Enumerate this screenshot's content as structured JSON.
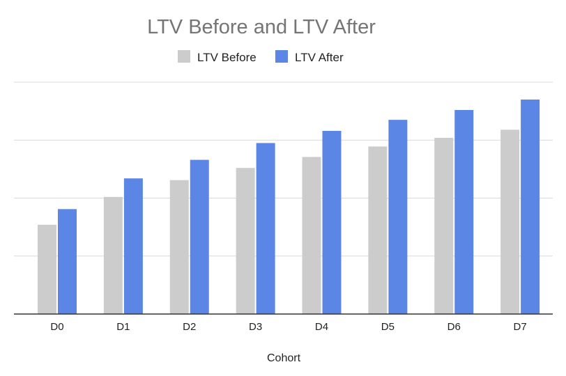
{
  "chart_data": {
    "type": "bar",
    "title": "LTV Before and LTV After",
    "xlabel": "Cohort",
    "ylabel": "",
    "categories": [
      "D0",
      "D1",
      "D2",
      "D3",
      "D4",
      "D5",
      "D6",
      "D7"
    ],
    "series": [
      {
        "name": "LTV Before",
        "color": "#cccccc",
        "values": [
          1.54,
          2.02,
          2.31,
          2.52,
          2.71,
          2.89,
          3.04,
          3.18
        ]
      },
      {
        "name": "LTV After",
        "color": "#5b86e5",
        "values": [
          1.81,
          2.34,
          2.66,
          2.95,
          3.16,
          3.35,
          3.52,
          3.7
        ]
      }
    ],
    "ylim": [
      0,
      4
    ],
    "y_gridlines": [
      1,
      2,
      3,
      4
    ],
    "y_tick_labels_visible": false,
    "grid": true,
    "legend": "top-center"
  }
}
